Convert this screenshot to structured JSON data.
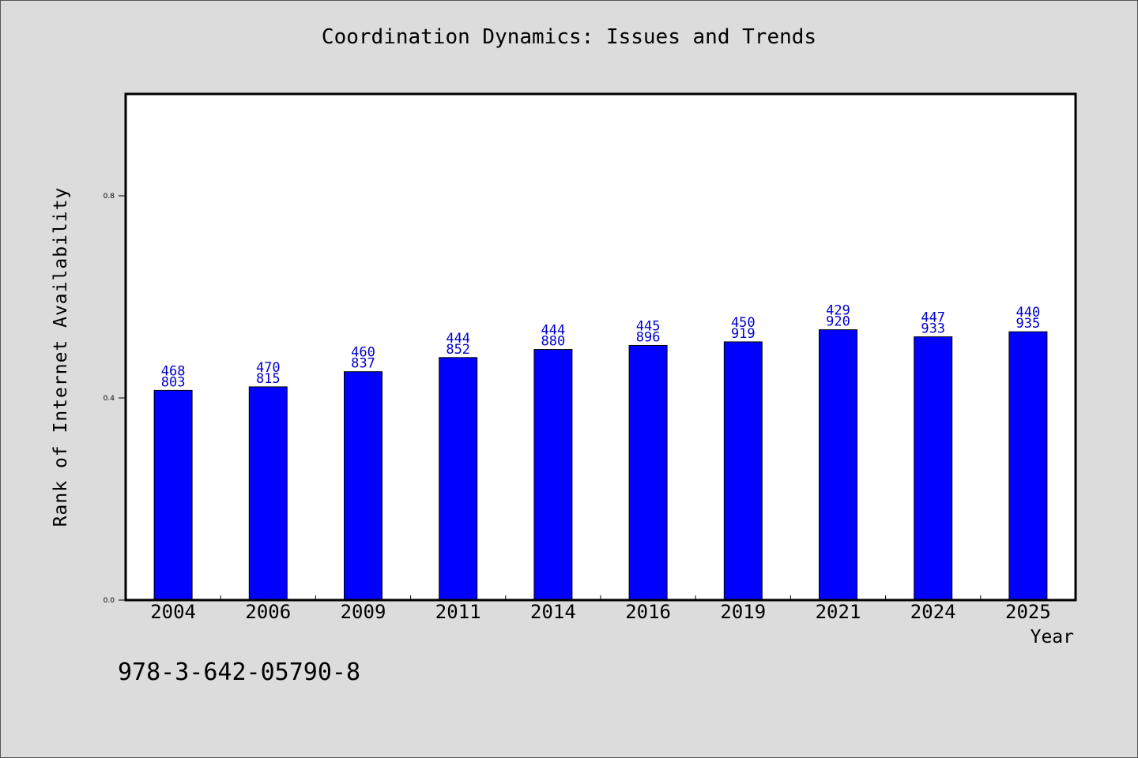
{
  "chart_data": {
    "type": "bar",
    "title": "Coordination Dynamics: Issues and Trends",
    "xlabel": "Year",
    "ylabel": "Rank of Internet Availability",
    "footer_text": "978-3-642-05790-8",
    "categories": [
      "2004",
      "2006",
      "2009",
      "2011",
      "2014",
      "2016",
      "2019",
      "2021",
      "2024",
      "2025"
    ],
    "values": [
      0.415,
      0.422,
      0.452,
      0.48,
      0.496,
      0.504,
      0.511,
      0.535,
      0.521,
      0.531
    ],
    "value_labels": [
      [
        "468",
        "803"
      ],
      [
        "470",
        "815"
      ],
      [
        "460",
        "837"
      ],
      [
        "444",
        "852"
      ],
      [
        "444",
        "880"
      ],
      [
        "445",
        "896"
      ],
      [
        "450",
        "919"
      ],
      [
        "429",
        "920"
      ],
      [
        "447",
        "933"
      ],
      [
        "440",
        "935"
      ]
    ],
    "yticks": [
      "0.0",
      "0.4",
      "0.8"
    ],
    "ylim": [
      0,
      1.0
    ],
    "bar_color": "#0000ff",
    "label_color": "#0000cc",
    "background_color": "#dcdcdc",
    "plot_background": "#ffffff",
    "grid": false,
    "legend": "none"
  }
}
